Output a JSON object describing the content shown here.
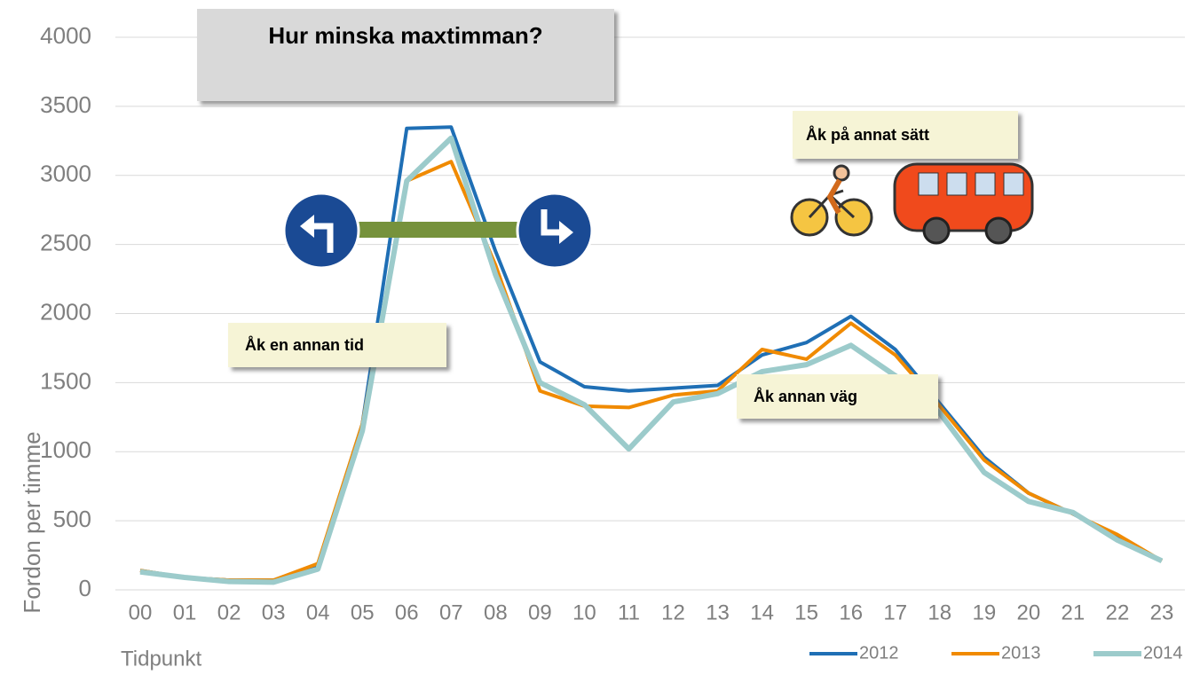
{
  "chart_data": {
    "type": "line",
    "title": "Hur minska maxtimman?",
    "annotations": [
      "Åk på annat sätt",
      "Åk en annan tid",
      "Åk annan väg"
    ],
    "x_label": "Tidpunkt",
    "y_label": "Fordon per timme",
    "categories": [
      "00",
      "01",
      "02",
      "03",
      "04",
      "05",
      "06",
      "07",
      "08",
      "09",
      "10",
      "11",
      "12",
      "13",
      "14",
      "15",
      "16",
      "17",
      "18",
      "19",
      "20",
      "21",
      "22",
      "23"
    ],
    "series": [
      {
        "name": "2012",
        "color": "#1f6fb5",
        "width": 4,
        "values": [
          140,
          90,
          70,
          70,
          180,
          1200,
          3340,
          3350,
          2450,
          1650,
          1470,
          1440,
          1460,
          1480,
          1700,
          1790,
          1980,
          1740,
          1350,
          960,
          700,
          550,
          380,
          210
        ]
      },
      {
        "name": "2013",
        "color": "#f08a00",
        "width": 4,
        "values": [
          140,
          90,
          70,
          70,
          190,
          1200,
          2960,
          3100,
          2350,
          1440,
          1330,
          1320,
          1410,
          1440,
          1740,
          1670,
          1930,
          1700,
          1330,
          940,
          700,
          550,
          400,
          210
        ]
      },
      {
        "name": "2014",
        "color": "#9ccbcb",
        "width": 6,
        "values": [
          130,
          90,
          60,
          55,
          150,
          1150,
          2960,
          3270,
          2280,
          1500,
          1340,
          1020,
          1360,
          1420,
          1580,
          1630,
          1770,
          1550,
          1280,
          850,
          640,
          560,
          360,
          210
        ]
      }
    ],
    "ylim": [
      0,
      4000
    ],
    "yticks": [
      0,
      500,
      1000,
      1500,
      2000,
      2500,
      3000,
      3500,
      4000
    ],
    "grid": true,
    "legend": "bottom-right"
  }
}
